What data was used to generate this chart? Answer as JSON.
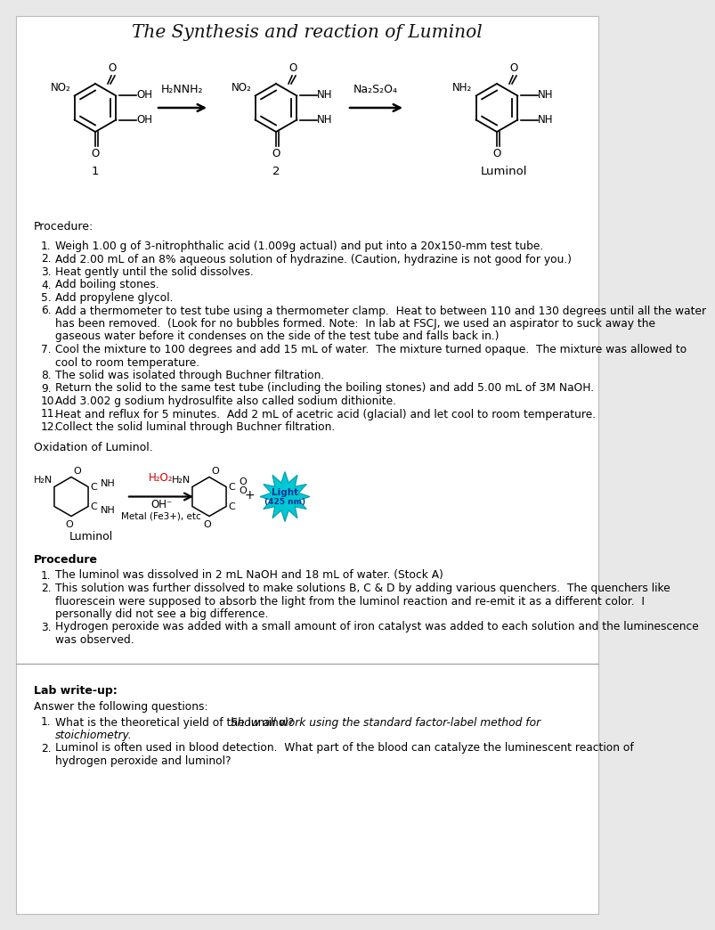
{
  "title": "The Synthesis and reaction of Luminol",
  "bg_color": "#e8e8e8",
  "page_bg": "#ffffff",
  "procedure_header": "Procedure:",
  "procedure_steps": [
    "Weigh 1.00 g of 3-nitrophthalic acid (1.009g actual) and put into a 20x150-mm test tube.",
    "Add 2.00 mL of an 8% aqueous solution of hydrazine. (Caution, hydrazine is not good for you.)",
    "Heat gently until the solid dissolves.",
    "Add boiling stones.",
    "Add propylene glycol.",
    "Add a thermometer to test tube using a thermometer clamp.  Heat to between 110 and 130 degrees until all the water|    has been removed.  (Look for no bubbles formed. Note:  In lab at FSCJ, we used an aspirator to suck away the|    gaseous water before it condenses on the side of the test tube and falls back in.)",
    "Cool the mixture to 100 degrees and add 15 mL of water.  The mixture turned opaque.  The mixture was allowed to|    cool to room temperature.",
    "The solid was isolated through Buchner filtration.",
    "Return the solid to the same test tube (including the boiling stones) and add 5.00 mL of 3M NaOH.",
    "Add 3.002 g sodium hydrosulfite also called sodium dithionite.",
    "Heat and reflux for 5 minutes.  Add 2 mL of acetric acid (glacial) and let cool to room temperature.",
    "Collect the solid luminal through Buchner filtration."
  ],
  "oxidation_header": "Oxidation of Luminol.",
  "procedure2_header": "Procedure",
  "procedure2_steps": [
    "The luminol was dissolved in 2 mL NaOH and 18 mL of water. (Stock A)",
    "This solution was further dissolved to make solutions B, C & D by adding various quenchers.  The quenchers like|    fluorescein were supposed to absorb the light from the luminol reaction and re-emit it as a different color.  I|    personally did not see a big difference.",
    "Hydrogen peroxide was added with a small amount of iron catalyst was added to each solution and the luminescence|    was observed."
  ],
  "lab_writeup_header": "Lab write-up:",
  "lab_writeup_intro": "Answer the following questions:",
  "lab_writeup_questions": [
    "What is the theoretical yield of the luminol?  Show all work using the standard factor-label method for|    stoichiometry.",
    "Luminol is often used in blood detection.  What part of the blood can catalyze the luminescent reaction of|    hydrogen peroxide and luminol?"
  ],
  "q_italic_part": [
    " Show all work using the standard factor-label method for stoichiometry.",
    ""
  ]
}
